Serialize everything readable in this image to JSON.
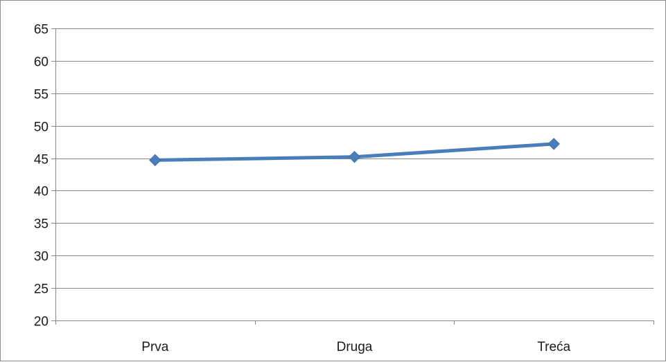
{
  "chart_data": {
    "type": "line",
    "categories": [
      "Prva",
      "Druga",
      "Treća"
    ],
    "series": [
      {
        "values": [
          44.7,
          45.2,
          47.2
        ],
        "color": "#4a7ebb"
      }
    ],
    "ylim": [
      20,
      65
    ],
    "yticks": [
      20,
      25,
      30,
      35,
      40,
      45,
      50,
      55,
      60,
      65
    ],
    "grid": true,
    "legend": "none",
    "marker": "diamond"
  }
}
